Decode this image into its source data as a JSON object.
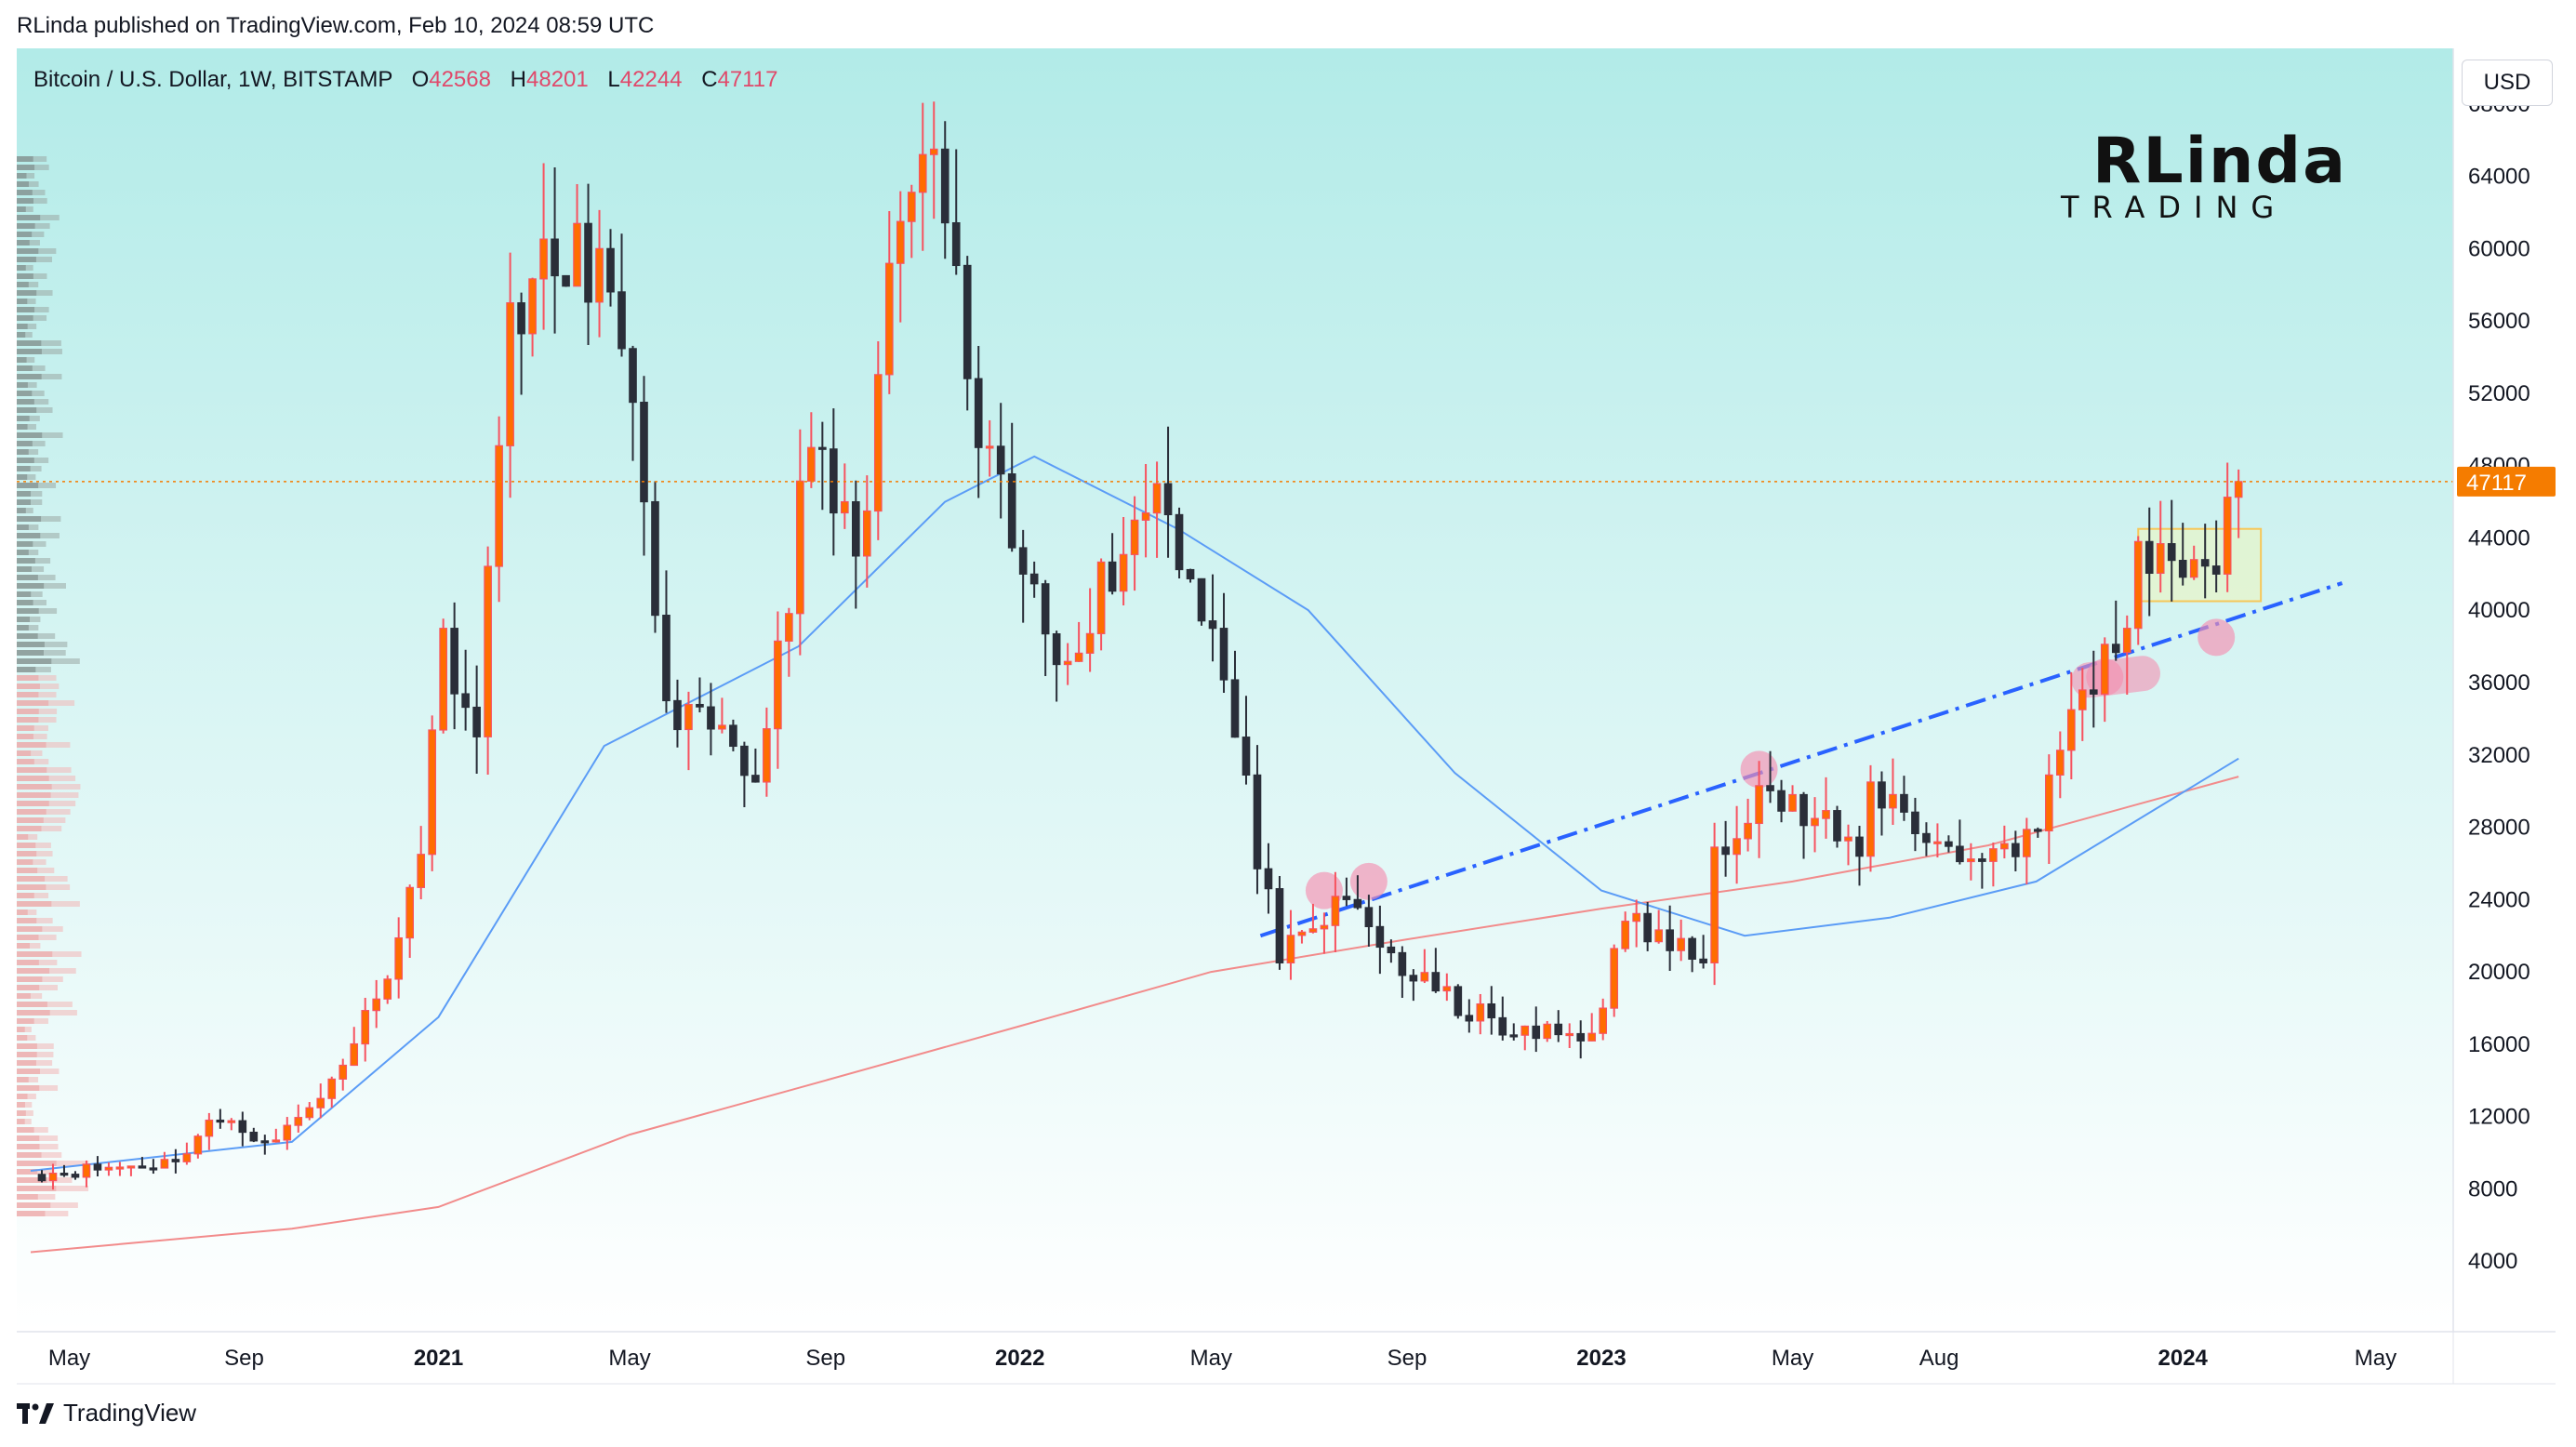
{
  "header": {
    "published_by": "RLinda published on TradingView.com, Feb 10, 2024 08:59 UTC"
  },
  "symbol": {
    "name": "Bitcoin / U.S. Dollar, 1W, BITSTAMP",
    "open_label": "O",
    "open": "42568",
    "high_label": "H",
    "high": "48201",
    "low_label": "L",
    "low": "42244",
    "close_label": "C",
    "close": "47117"
  },
  "currency_button": "USD",
  "logo": {
    "main": "RLinda",
    "sub": "TRADING"
  },
  "footer": {
    "brand": "TradingView",
    "icon": "tradingview-logo-icon"
  },
  "colors": {
    "up": "#f7525f",
    "up_body": "#ff6d00",
    "down": "#2a2e39",
    "ma_blue": "#5b9cf6",
    "ma_red": "#f28b8b",
    "trendline": "#2962ff",
    "price_label": "#f57c00",
    "bg_top": "#b2ebe8",
    "bg_bottom": "#ffffff"
  },
  "chart_data": {
    "type": "candlestick",
    "interval": "1W",
    "ylim": [
      0,
      72000
    ],
    "y_ticks": [
      "68000",
      "64000",
      "60000",
      "56000",
      "52000",
      "48000",
      "44000",
      "40000",
      "36000",
      "32000",
      "28000",
      "24000",
      "20000",
      "16000",
      "12000",
      "8000",
      "4000"
    ],
    "x_ticks": [
      {
        "label": "May",
        "date": "2020-05-01",
        "bold": false
      },
      {
        "label": "Sep",
        "date": "2020-09-01",
        "bold": false
      },
      {
        "label": "2021",
        "date": "2021-01-01",
        "bold": true
      },
      {
        "label": "May",
        "date": "2021-05-01",
        "bold": false
      },
      {
        "label": "Sep",
        "date": "2021-09-01",
        "bold": false
      },
      {
        "label": "2022",
        "date": "2022-01-01",
        "bold": true
      },
      {
        "label": "May",
        "date": "2022-05-01",
        "bold": false
      },
      {
        "label": "Sep",
        "date": "2022-09-01",
        "bold": false
      },
      {
        "label": "2023",
        "date": "2023-01-01",
        "bold": true
      },
      {
        "label": "May",
        "date": "2023-05-01",
        "bold": false
      },
      {
        "label": "Aug",
        "date": "2023-08-01",
        "bold": false
      },
      {
        "label": "2024",
        "date": "2024-01-01",
        "bold": true
      },
      {
        "label": "May",
        "date": "2024-05-01",
        "bold": false
      }
    ],
    "last_price": "47117",
    "anchors": [
      {
        "date": "2020-04-20",
        "close": 8800
      },
      {
        "date": "2020-07-20",
        "close": 9500
      },
      {
        "date": "2020-08-10",
        "close": 11800
      },
      {
        "date": "2020-09-21",
        "close": 10700
      },
      {
        "date": "2020-10-19",
        "close": 13000
      },
      {
        "date": "2020-11-23",
        "close": 18500
      },
      {
        "date": "2020-12-21",
        "close": 26500
      },
      {
        "date": "2021-01-04",
        "close": 39000
      },
      {
        "date": "2021-01-25",
        "close": 33000
      },
      {
        "date": "2021-02-15",
        "close": 57000
      },
      {
        "date": "2021-03-15",
        "close": 58500
      },
      {
        "date": "2021-04-12",
        "close": 60000
      },
      {
        "date": "2021-05-10",
        "close": 46000
      },
      {
        "date": "2021-05-24",
        "close": 35000
      },
      {
        "date": "2021-07-19",
        "close": 30500
      },
      {
        "date": "2021-08-23",
        "close": 49000
      },
      {
        "date": "2021-09-20",
        "close": 43000
      },
      {
        "date": "2021-10-18",
        "close": 61500
      },
      {
        "date": "2021-11-08",
        "close": 65500
      },
      {
        "date": "2021-12-06",
        "close": 49000
      },
      {
        "date": "2022-01-03",
        "close": 42000
      },
      {
        "date": "2022-01-24",
        "close": 37000
      },
      {
        "date": "2022-03-28",
        "close": 47000
      },
      {
        "date": "2022-05-02",
        "close": 39000
      },
      {
        "date": "2022-06-13",
        "close": 20500
      },
      {
        "date": "2022-07-25",
        "close": 24000
      },
      {
        "date": "2022-09-05",
        "close": 19500
      },
      {
        "date": "2022-11-07",
        "close": 16500
      },
      {
        "date": "2022-12-26",
        "close": 16600
      },
      {
        "date": "2023-01-16",
        "close": 22800
      },
      {
        "date": "2023-03-06",
        "close": 20500
      },
      {
        "date": "2023-03-13",
        "close": 26900
      },
      {
        "date": "2023-04-10",
        "close": 30300
      },
      {
        "date": "2023-06-12",
        "close": 26400
      },
      {
        "date": "2023-06-19",
        "close": 30500
      },
      {
        "date": "2023-08-14",
        "close": 26100
      },
      {
        "date": "2023-10-02",
        "close": 27800
      },
      {
        "date": "2023-10-23",
        "close": 34500
      },
      {
        "date": "2023-11-27",
        "close": 39000
      },
      {
        "date": "2023-12-04",
        "close": 43800
      },
      {
        "date": "2024-01-08",
        "close": 42800
      },
      {
        "date": "2024-01-22",
        "close": 42000
      },
      {
        "date": "2024-02-05",
        "close": 47117
      }
    ],
    "ma_blue": [
      {
        "date": "2020-04-20",
        "value": 9000
      },
      {
        "date": "2020-10-01",
        "value": 10600
      },
      {
        "date": "2021-01-01",
        "value": 17500
      },
      {
        "date": "2021-04-15",
        "value": 32500
      },
      {
        "date": "2021-08-15",
        "value": 38000
      },
      {
        "date": "2021-11-15",
        "value": 46000
      },
      {
        "date": "2022-01-10",
        "value": 48500
      },
      {
        "date": "2022-04-10",
        "value": 44500
      },
      {
        "date": "2022-07-01",
        "value": 40000
      },
      {
        "date": "2022-10-01",
        "value": 31000
      },
      {
        "date": "2023-01-01",
        "value": 24500
      },
      {
        "date": "2023-04-01",
        "value": 22000
      },
      {
        "date": "2023-07-01",
        "value": 23000
      },
      {
        "date": "2023-10-01",
        "value": 25000
      },
      {
        "date": "2024-02-05",
        "value": 31800
      }
    ],
    "ma_red": [
      {
        "date": "2020-04-20",
        "value": 4500
      },
      {
        "date": "2020-10-01",
        "value": 5800
      },
      {
        "date": "2021-01-01",
        "value": 7000
      },
      {
        "date": "2021-05-01",
        "value": 11000
      },
      {
        "date": "2021-09-01",
        "value": 14000
      },
      {
        "date": "2022-01-01",
        "value": 17000
      },
      {
        "date": "2022-05-01",
        "value": 20000
      },
      {
        "date": "2022-09-01",
        "value": 21800
      },
      {
        "date": "2023-01-01",
        "value": 23500
      },
      {
        "date": "2023-05-01",
        "value": 25000
      },
      {
        "date": "2023-09-01",
        "value": 27000
      },
      {
        "date": "2024-02-05",
        "value": 30800
      }
    ],
    "trendline": [
      {
        "date": "2022-06-01",
        "value": 22000
      },
      {
        "date": "2024-04-10",
        "value": 41500
      }
    ],
    "range_box": {
      "from": "2023-12-04",
      "to": "2024-02-19",
      "low": 40500,
      "high": 44500
    },
    "highlights": [
      {
        "date": "2022-07-11",
        "value": 24500
      },
      {
        "date": "2022-08-08",
        "value": 25000
      },
      {
        "date": "2023-04-10",
        "value": 31200
      },
      {
        "date": "2023-11-13",
        "value": 36300
      },
      {
        "date": "2024-01-22",
        "value": 38500
      }
    ]
  }
}
